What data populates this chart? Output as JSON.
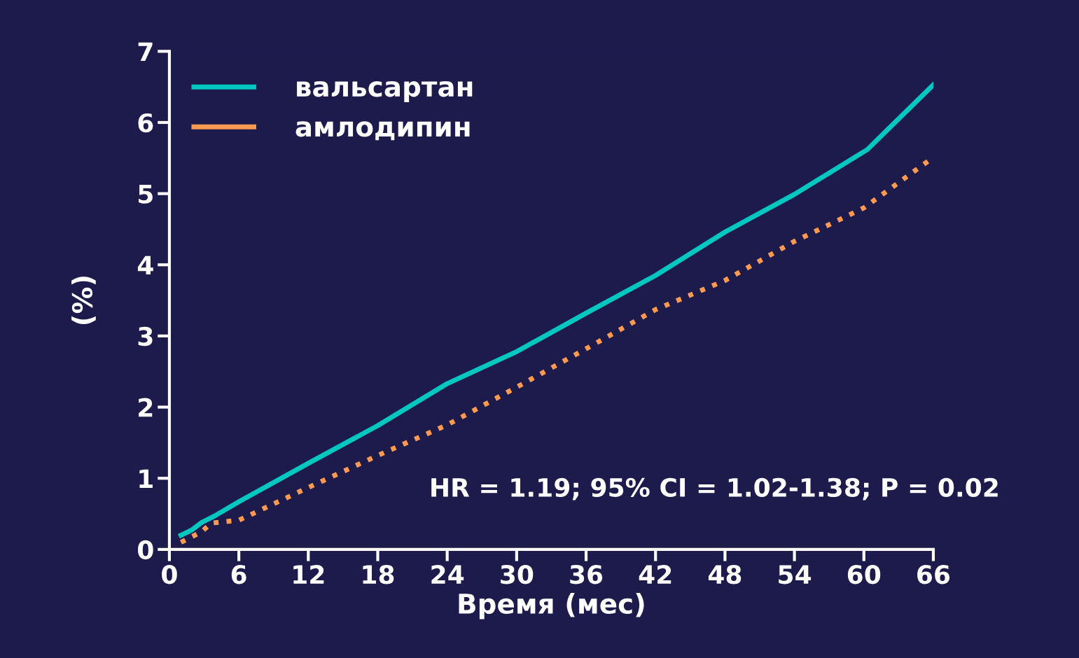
{
  "chart_data": {
    "type": "line",
    "xlabel": "Время (мес)",
    "ylabel": "(%)",
    "annotations": [
      "HR = 1.19; 95% CI = 1.02-1.38; P = 0.02"
    ],
    "xlim": [
      0,
      66
    ],
    "xticks": [
      0,
      6,
      12,
      18,
      24,
      30,
      36,
      42,
      48,
      54,
      60,
      66
    ],
    "ylim": [
      0,
      7
    ],
    "yticks": [
      0,
      1,
      2,
      3,
      4,
      5,
      6,
      7
    ],
    "grid": false,
    "legend": "top left",
    "series": [
      {
        "name": "вальсартан",
        "color": "#00c8c0",
        "line_style": "solid",
        "x": [
          1.0,
          1.9,
          2.8,
          3.9,
          6,
          12,
          18,
          24,
          30,
          36,
          42,
          48,
          54,
          60.3,
          66
        ],
        "values": [
          0.2,
          0.27,
          0.38,
          0.47,
          0.67,
          1.21,
          1.74,
          2.33,
          2.78,
          3.32,
          3.85,
          4.46,
          4.99,
          5.62,
          6.53
        ]
      },
      {
        "name": "амлодипин",
        "color": "#ff9a50",
        "line_style": "dotted",
        "x": [
          1,
          2.8,
          3.6,
          6,
          12,
          18,
          24,
          30,
          36,
          42,
          48,
          54,
          60,
          66
        ],
        "values": [
          0.1,
          0.25,
          0.37,
          0.41,
          0.87,
          1.32,
          1.75,
          2.28,
          2.82,
          3.37,
          3.78,
          4.33,
          4.8,
          5.51
        ]
      }
    ]
  }
}
